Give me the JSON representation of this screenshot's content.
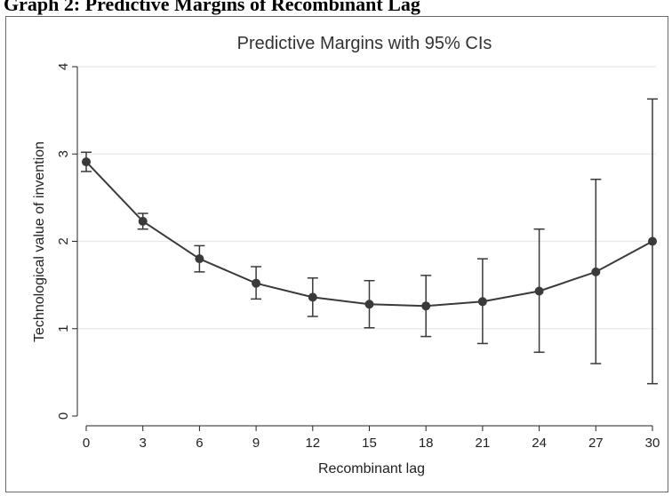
{
  "page": {
    "heading_text": "Graph 2: Predictive Margins of Recombinant Lag"
  },
  "colors": {
    "series": "#3a3a3a",
    "grid": "#e8e8e8",
    "axis": "#222222"
  },
  "chart_data": {
    "type": "line",
    "title": "Predictive Margins with 95% CIs",
    "xlabel": "Recombinant lag",
    "ylabel": "Technological value of invention",
    "xlim": [
      0,
      30
    ],
    "ylim": [
      0,
      4
    ],
    "xticks": [
      0,
      3,
      6,
      9,
      12,
      15,
      18,
      21,
      24,
      27,
      30
    ],
    "yticks": [
      0,
      1,
      2,
      3,
      4
    ],
    "grid": "horizontal",
    "series": [
      {
        "x": [
          0,
          3,
          6,
          9,
          12,
          15,
          18,
          21,
          24,
          27,
          30
        ],
        "y": [
          2.91,
          2.23,
          1.8,
          1.52,
          1.36,
          1.28,
          1.26,
          1.31,
          1.43,
          1.65,
          2.0
        ],
        "ci_low": [
          2.8,
          2.14,
          1.65,
          1.34,
          1.14,
          1.01,
          0.91,
          0.83,
          0.73,
          0.6,
          0.37
        ],
        "ci_high": [
          3.02,
          2.32,
          1.95,
          1.71,
          1.58,
          1.55,
          1.61,
          1.8,
          2.14,
          2.71,
          3.63
        ]
      }
    ]
  }
}
